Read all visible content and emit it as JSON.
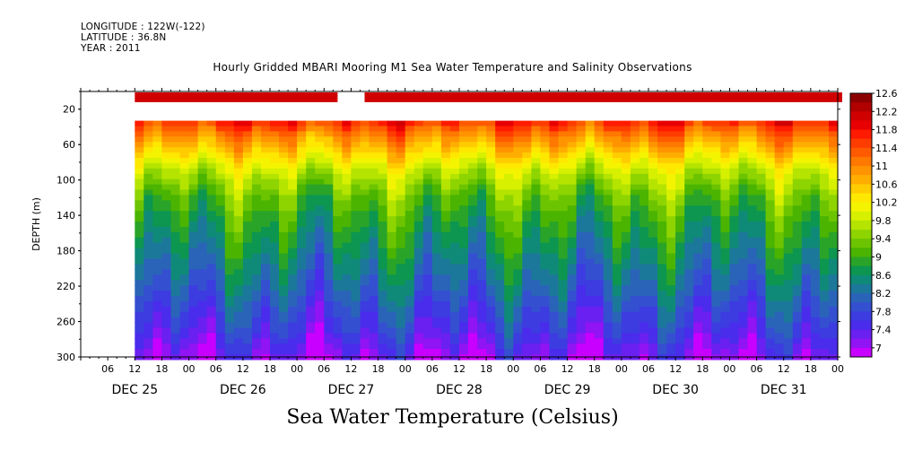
{
  "header": {
    "longitude": "LONGITUDE : 122W(-122)",
    "latitude": "LATITUDE : 36.8N",
    "year": "YEAR : 2011"
  },
  "chart_data": {
    "type": "heatmap",
    "title": "Hourly Gridded MBARI Mooring M1 Sea Water Temperature and Salinity Observations",
    "subtitle": "Sea Water Temperature (Celsius)",
    "ylabel": "DEPTH (m)",
    "ylim": [
      0,
      300
    ],
    "y_inverted": true,
    "y_ticks": [
      20,
      60,
      100,
      140,
      180,
      220,
      260,
      300
    ],
    "x_hour_ticks": [
      "06",
      "12",
      "18",
      "00",
      "06",
      "12",
      "18",
      "00",
      "06",
      "12",
      "18",
      "00",
      "06",
      "12",
      "18",
      "00",
      "06",
      "12",
      "18",
      "00",
      "06",
      "12",
      "18",
      "00",
      "06",
      "12",
      "18",
      "00"
    ],
    "x_day_labels": [
      "DEC 25",
      "DEC 26",
      "DEC 27",
      "DEC 28",
      "DEC 29",
      "DEC 30",
      "DEC 31"
    ],
    "x_range_hours": [
      0,
      168
    ],
    "data_start_hour": 6,
    "colorbar": {
      "labels": [
        "12.6",
        "12.2",
        "11.8",
        "11.4",
        "11",
        "10.6",
        "10.2",
        "9.8",
        "9.4",
        "9",
        "8.6",
        "8.2",
        "7.8",
        "7.4",
        "7"
      ],
      "levels": [
        12.6,
        12.4,
        12.2,
        12.0,
        11.8,
        11.6,
        11.4,
        11.2,
        11.0,
        10.8,
        10.6,
        10.4,
        10.2,
        10.0,
        9.8,
        9.6,
        9.4,
        9.2,
        9.0,
        8.8,
        8.6,
        8.4,
        8.2,
        8.0,
        7.8,
        7.6,
        7.4,
        7.2,
        7.0
      ],
      "colors": [
        "#8b0000",
        "#b00000",
        "#d00000",
        "#e80000",
        "#ff1a00",
        "#ff3c00",
        "#ff5a00",
        "#ff7800",
        "#ff9400",
        "#ffae00",
        "#ffcc00",
        "#ffe800",
        "#f4f400",
        "#d6f000",
        "#b4e400",
        "#8ed400",
        "#6cc400",
        "#4ab400",
        "#2aa428",
        "#0c9650",
        "#108a78",
        "#1c789a",
        "#2a64b8",
        "#3450d0",
        "#3c3ce0",
        "#4a2cec",
        "#6a20f0",
        "#9014f4",
        "#c800ff"
      ]
    },
    "surface_bar": {
      "depth_m": 10,
      "value": 12.3,
      "gaps_hours": [
        [
          -6,
          0
        ],
        [
          51,
          57
        ],
        [
          163,
          166
        ]
      ]
    },
    "profile": {
      "mixed_layer_top_m": 33,
      "surface_temp": 11.8,
      "bottom_temp": 7.3,
      "depths": [
        33,
        40,
        50,
        60,
        70,
        80,
        90,
        100,
        110,
        120,
        130,
        140,
        150,
        160,
        170,
        180,
        190,
        200,
        210,
        220,
        230,
        240,
        250,
        260,
        270,
        280,
        290,
        300
      ],
      "mean_temps": [
        11.9,
        11.6,
        11.2,
        10.9,
        10.6,
        10.3,
        10.0,
        9.8,
        9.6,
        9.4,
        9.3,
        9.15,
        9.05,
        8.95,
        8.85,
        8.75,
        8.65,
        8.55,
        8.45,
        8.35,
        8.25,
        8.1,
        8.0,
        7.9,
        7.8,
        7.65,
        7.5,
        7.35
      ]
    }
  }
}
